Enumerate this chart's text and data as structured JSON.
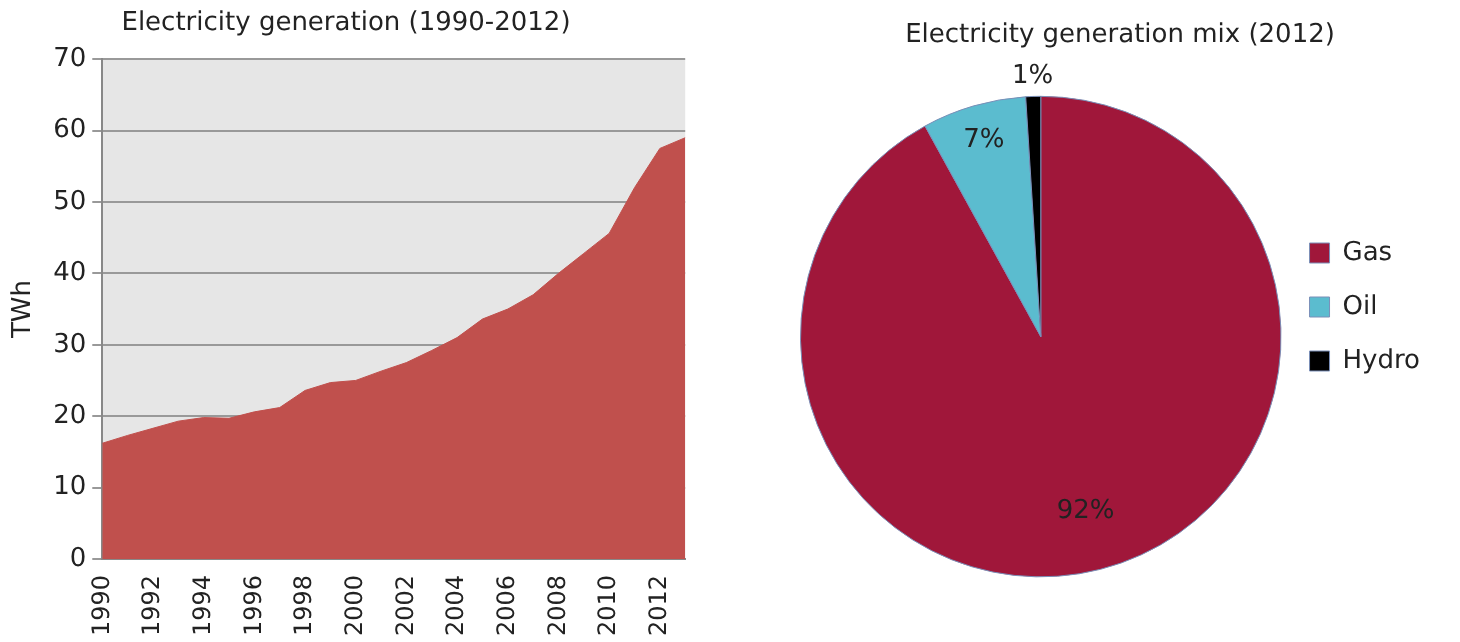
{
  "chart_data": [
    {
      "type": "area",
      "title": "Electricity generation (1990-2012)",
      "ylabel": "TWh",
      "categories": [
        "1990",
        null,
        "1992",
        null,
        "1994",
        null,
        "1996",
        null,
        "1998",
        null,
        "2000",
        null,
        "2002",
        null,
        "2004",
        null,
        "2006",
        null,
        "2008",
        null,
        "2010",
        null,
        "2012",
        null
      ],
      "series": [
        {
          "color": "#c0504d",
          "values": [
            16.2,
            17.3,
            18.3,
            19.3,
            19.8,
            19.7,
            20.6,
            21.2,
            23.6,
            24.7,
            25,
            26.3,
            27.5,
            29.2,
            31,
            33.6,
            35,
            37,
            40,
            42.8,
            45.6,
            52,
            57.5,
            59
          ]
        }
      ],
      "ylim": [
        0,
        70
      ],
      "yticks": [
        0,
        10,
        20,
        30,
        40,
        50,
        60,
        70
      ],
      "grid": "y",
      "legend": false
    },
    {
      "type": "pie",
      "title": "Electricity generation mix (2012)",
      "categories": [
        "Gas",
        "Oil",
        "Hydro"
      ],
      "values": [
        92,
        7,
        1
      ],
      "colors": [
        "#a0173a",
        "#5bbccf",
        "#000000"
      ],
      "value_labels": [
        "92%",
        "7%",
        "1%"
      ],
      "legend": "right"
    }
  ]
}
